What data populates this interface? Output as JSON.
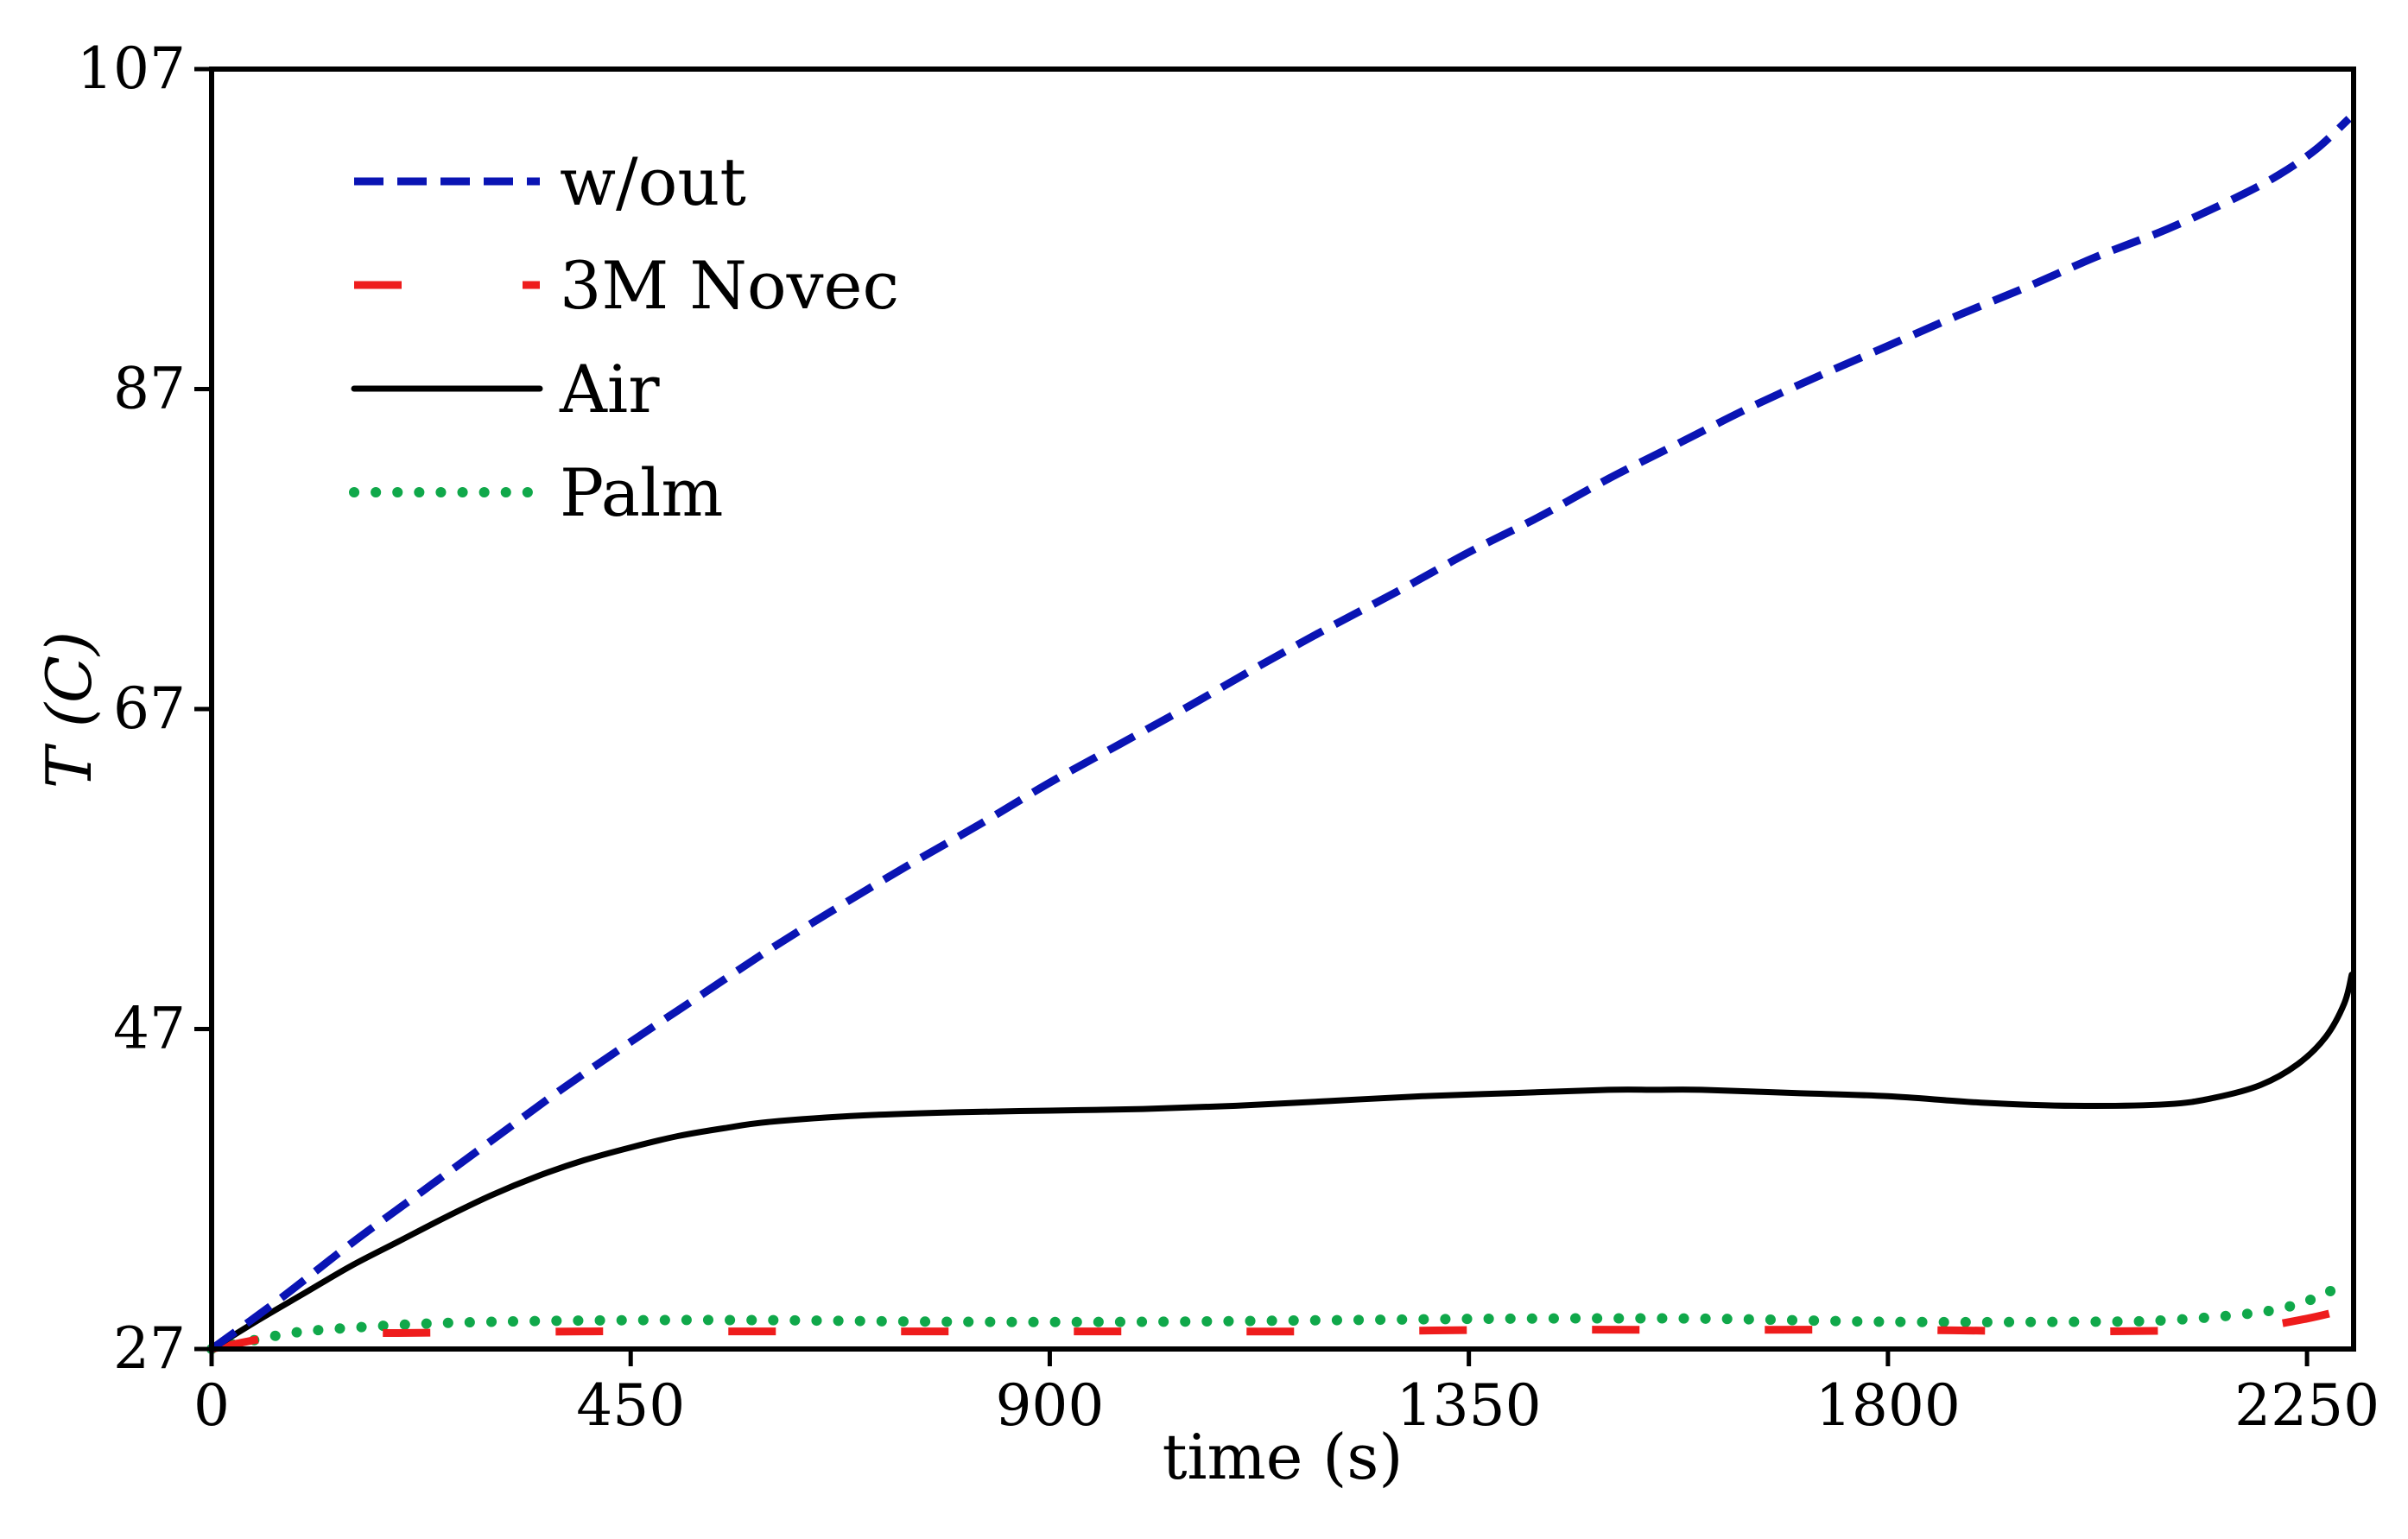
{
  "chart_data": {
    "type": "line",
    "title": "",
    "xlabel": "time (s)",
    "ylabel": "T (C)",
    "xlim": [
      0,
      2300
    ],
    "ylim": [
      27,
      107
    ],
    "xticks": [
      0,
      450,
      900,
      1350,
      1800,
      2250
    ],
    "yticks": [
      27,
      47,
      67,
      87,
      107
    ],
    "legend_position": "top-left",
    "grid": false,
    "series": [
      {
        "name": "w/out",
        "color": "#0a14b4",
        "style": "dashed",
        "x": [
          0,
          75,
          150,
          225,
          300,
          375,
          450,
          525,
          600,
          675,
          750,
          825,
          900,
          975,
          1050,
          1125,
          1200,
          1275,
          1350,
          1425,
          1500,
          1575,
          1650,
          1725,
          1800,
          1875,
          1950,
          2025,
          2100,
          2175,
          2220,
          2260,
          2295
        ],
        "y": [
          27,
          30.2,
          33.6,
          36.8,
          40.0,
          43.2,
          46.2,
          49.1,
          52.0,
          54.7,
          57.3,
          59.8,
          62.4,
          64.8,
          67.2,
          69.7,
          72.1,
          74.4,
          76.8,
          79.0,
          81.4,
          83.6,
          85.8,
          87.8,
          89.7,
          91.6,
          93.4,
          95.3,
          97.0,
          99.0,
          100.4,
          102.0,
          103.9
        ]
      },
      {
        "name": "3M Novec",
        "color": "#ee1c1c",
        "style": "long-dashed",
        "x": [
          0,
          50,
          100,
          200,
          400,
          600,
          800,
          1000,
          1200,
          1400,
          1600,
          1800,
          2000,
          2150,
          2200,
          2250,
          2280
        ],
        "y": [
          27,
          27.6,
          28.0,
          28.0,
          28.1,
          28.1,
          28.1,
          28.1,
          28.1,
          28.2,
          28.2,
          28.2,
          28.1,
          28.2,
          28.4,
          28.9,
          29.3
        ]
      },
      {
        "name": "Air",
        "color": "#000000",
        "style": "solid",
        "x": [
          0,
          50,
          100,
          150,
          200,
          250,
          300,
          350,
          400,
          450,
          500,
          550,
          600,
          700,
          800,
          900,
          1000,
          1100,
          1200,
          1300,
          1400,
          1500,
          1550,
          1600,
          1700,
          1800,
          1900,
          2000,
          2100,
          2150,
          2200,
          2240,
          2270,
          2290,
          2298
        ],
        "y": [
          27,
          28.8,
          30.5,
          32.2,
          33.7,
          35.2,
          36.6,
          37.8,
          38.8,
          39.6,
          40.3,
          40.8,
          41.2,
          41.6,
          41.8,
          41.9,
          42.0,
          42.2,
          42.5,
          42.8,
          43.0,
          43.2,
          43.2,
          43.2,
          43.0,
          42.8,
          42.4,
          42.2,
          42.3,
          42.7,
          43.5,
          44.8,
          46.5,
          48.6,
          50.4
        ]
      },
      {
        "name": "Palm",
        "color": "#10a84a",
        "style": "dotted",
        "x": [
          0,
          50,
          100,
          200,
          300,
          450,
          600,
          800,
          1000,
          1200,
          1400,
          1600,
          1800,
          2000,
          2100,
          2200,
          2250,
          2285
        ],
        "y": [
          27,
          27.6,
          28.1,
          28.5,
          28.7,
          28.8,
          28.8,
          28.7,
          28.7,
          28.8,
          28.9,
          28.9,
          28.7,
          28.7,
          28.8,
          29.3,
          30.0,
          30.9
        ]
      }
    ]
  }
}
